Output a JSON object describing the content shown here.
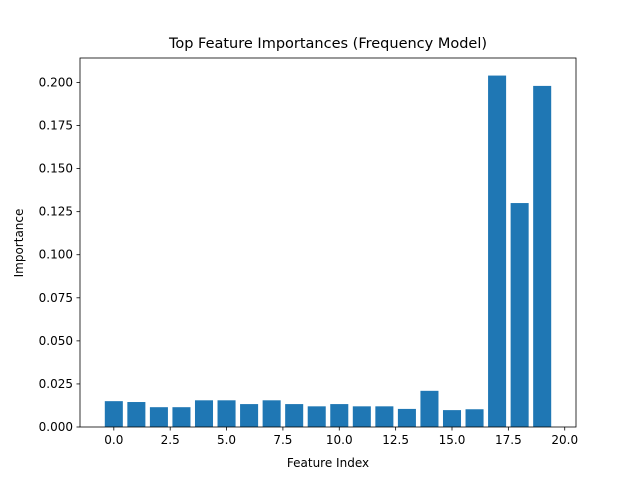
{
  "chart_data": {
    "type": "bar",
    "title": "Top Feature Importances (Frequency Model)",
    "xlabel": "Feature Index",
    "ylabel": "Importance",
    "x": [
      0,
      1,
      2,
      3,
      4,
      5,
      6,
      7,
      8,
      9,
      10,
      11,
      12,
      13,
      14,
      15,
      16,
      17,
      18,
      19
    ],
    "values": [
      0.015,
      0.0145,
      0.0115,
      0.0115,
      0.0155,
      0.0155,
      0.0133,
      0.0155,
      0.0133,
      0.012,
      0.0133,
      0.012,
      0.012,
      0.0105,
      0.021,
      0.0098,
      0.0103,
      0.204,
      0.13,
      0.198
    ],
    "xlim": [
      -1.5,
      20.5
    ],
    "ylim": [
      0,
      0.2142
    ],
    "xticks": [
      "0.0",
      "2.5",
      "5.0",
      "7.5",
      "10.0",
      "12.5",
      "15.0",
      "17.5",
      "20.0"
    ],
    "xtick_values": [
      0,
      2.5,
      5,
      7.5,
      10,
      12.5,
      15,
      17.5,
      20
    ],
    "yticks": [
      "0.000",
      "0.025",
      "0.050",
      "0.075",
      "0.100",
      "0.125",
      "0.150",
      "0.175",
      "0.200"
    ],
    "ytick_values": [
      0,
      0.025,
      0.05,
      0.075,
      0.1,
      0.125,
      0.15,
      0.175,
      0.2
    ],
    "bar_color": "#1f77b4",
    "grid": false,
    "legend": "none"
  }
}
